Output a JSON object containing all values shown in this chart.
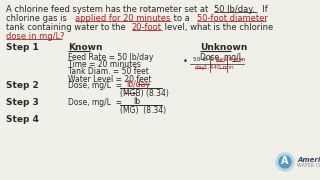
{
  "bg_color": "#f0efe8",
  "text_color": "#2a2a2a",
  "red_color": "#aa2222",
  "fs_body": 6.0,
  "fs_step": 6.5,
  "fs_known": 5.5,
  "line1_plain": "A chlorine feed system has the rotameter set at ",
  "line1_red": "50 lb/day.",
  "line1_end": "  If",
  "line2_start": "chlorine gas is ",
  "line2_red1": "applied for 20 minutes",
  "line2_mid": " to a ",
  "line2_red2": "50-foot diameter",
  "line3_start": "tank containing water to the ",
  "line3_red": "20-foot",
  "line3_end": " level, what is the chlorine",
  "line4_red": "dose in mg/L?",
  "known_items": [
    "Feed Rate = 50 lb/day",
    "Time = 20 minutes",
    "Tank Diam. = 50 feet",
    "Water Level = 20 feet"
  ],
  "step2_num": "lb/day",
  "step2_den": "(MGB) (8.34)",
  "step3_num": "lb",
  "step3_den": "(MG)  (8.34)"
}
